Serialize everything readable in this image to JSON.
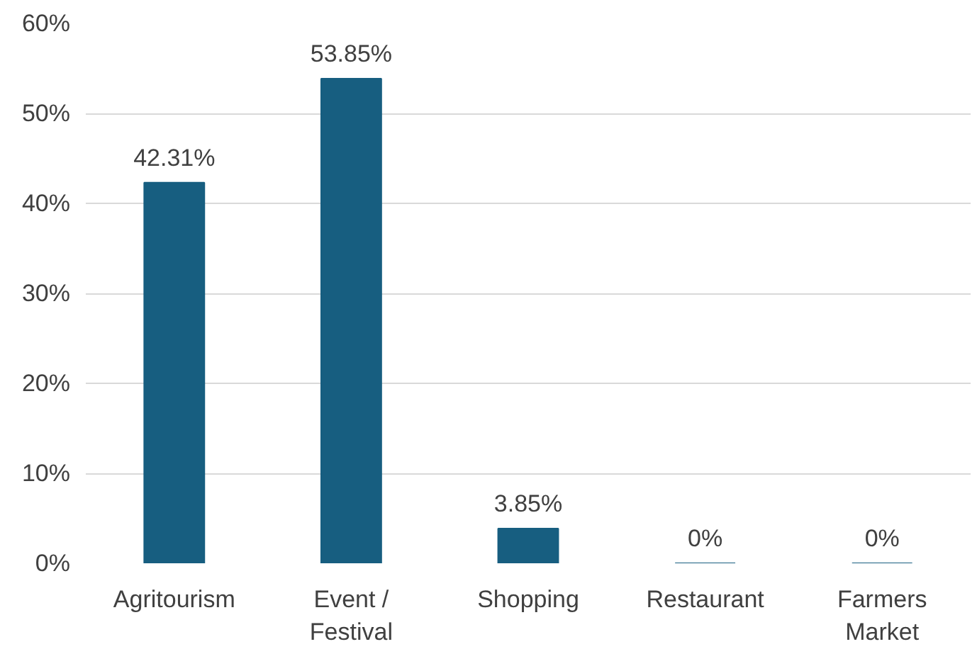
{
  "chart_data": {
    "type": "bar",
    "categories": [
      "Agritourism",
      "Event / Festival",
      "Shopping",
      "Restaurant",
      "Farmers Market"
    ],
    "values": [
      42.31,
      53.85,
      3.85,
      0,
      0
    ],
    "value_labels": [
      "42.31%",
      "53.85%",
      "3.85%",
      "0%",
      "0%"
    ],
    "color": "#175e80",
    "ylim": [
      0,
      60
    ],
    "yticks": [
      {
        "value": 0,
        "label": "0%"
      },
      {
        "value": 10,
        "label": "10%"
      },
      {
        "value": 20,
        "label": "20%"
      },
      {
        "value": 30,
        "label": "30%"
      },
      {
        "value": 40,
        "label": "40%"
      },
      {
        "value": 50,
        "label": "50%"
      },
      {
        "value": 60,
        "label": "60%"
      }
    ],
    "grid": "y"
  }
}
